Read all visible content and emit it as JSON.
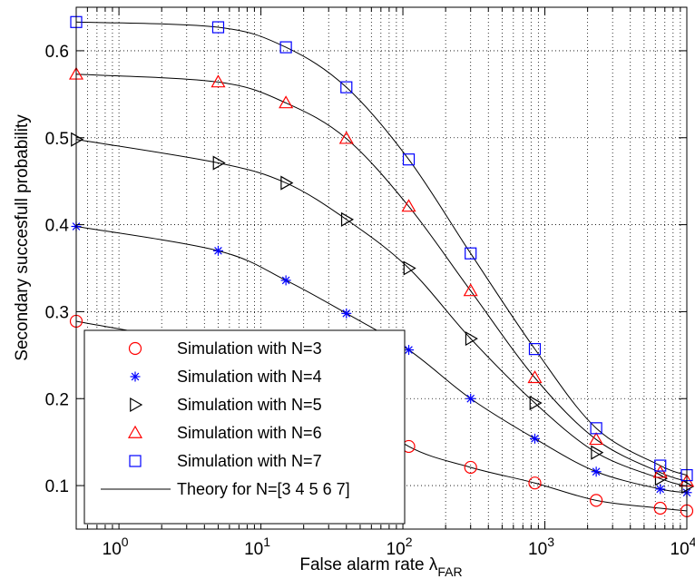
{
  "chart_data": {
    "type": "line",
    "xscale": "log",
    "xlim": [
      0.5,
      10000
    ],
    "ylim": [
      0.05,
      0.65
    ],
    "grid": true,
    "legend_placement": "bottom-left",
    "xlabel": "False alarm rate λ",
    "xlabel_sub": "FAR",
    "ylabel": "Secondary succesfull probability",
    "x_ticks": [
      {
        "value": 1,
        "base": "10",
        "exp": "0"
      },
      {
        "value": 10,
        "base": "10",
        "exp": "1"
      },
      {
        "value": 100,
        "base": "10",
        "exp": "2"
      },
      {
        "value": 1000,
        "base": "10",
        "exp": "3"
      },
      {
        "value": 10000,
        "base": "10",
        "exp": "4"
      }
    ],
    "y_ticks": [
      {
        "value": 0.1,
        "label": "0.1"
      },
      {
        "value": 0.2,
        "label": "0.2"
      },
      {
        "value": 0.3,
        "label": "0.3"
      },
      {
        "value": 0.4,
        "label": "0.4"
      },
      {
        "value": 0.5,
        "label": "0.5"
      },
      {
        "value": 0.6,
        "label": "0.6"
      }
    ],
    "x": [
      0.5,
      5,
      15,
      40,
      110,
      300,
      850,
      2300,
      6500,
      10000
    ],
    "series": [
      {
        "name": "Simulation with N=3",
        "marker": "circle",
        "color": "#ff0000",
        "values": [
          0.289,
          0.258,
          0.228,
          0.198,
          0.145,
          0.121,
          0.103,
          0.083,
          0.074,
          0.071
        ]
      },
      {
        "name": "Simulation with N=4",
        "marker": "star",
        "color": "#0000ff",
        "values": [
          0.398,
          0.37,
          0.336,
          0.298,
          0.256,
          0.2,
          0.154,
          0.116,
          0.096,
          0.092
        ]
      },
      {
        "name": "Simulation with N=5",
        "marker": "triangle-right",
        "color": "#000000",
        "values": [
          0.498,
          0.471,
          0.448,
          0.406,
          0.35,
          0.269,
          0.195,
          0.138,
          0.108,
          0.099
        ]
      },
      {
        "name": "Simulation with N=6",
        "marker": "triangle-up",
        "color": "#ff0000",
        "values": [
          0.573,
          0.564,
          0.54,
          0.499,
          0.421,
          0.324,
          0.224,
          0.153,
          0.115,
          0.105
        ]
      },
      {
        "name": "Simulation with N=7",
        "marker": "square",
        "color": "#0000ff",
        "values": [
          0.633,
          0.627,
          0.604,
          0.558,
          0.475,
          0.367,
          0.257,
          0.166,
          0.123,
          0.112
        ]
      }
    ],
    "theory": {
      "name": "Theory for N=[3 4 5 6 7]",
      "color": "#000000"
    }
  }
}
